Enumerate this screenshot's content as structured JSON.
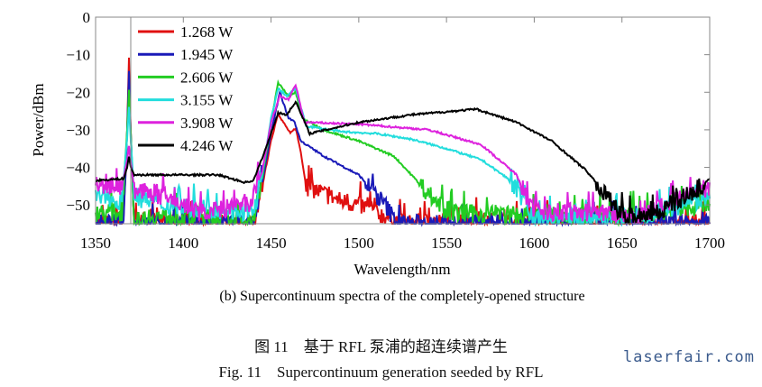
{
  "chart_data": {
    "type": "line",
    "title": "(b) Supercontinuum spectra of the completely-opened structure",
    "xlabel": "Wavelength/nm",
    "ylabel": "Power/dBm",
    "xlim": [
      1350,
      1700
    ],
    "ylim": [
      -55,
      0
    ],
    "xticks": [
      1350,
      1400,
      1450,
      1500,
      1550,
      1600,
      1650,
      1700
    ],
    "yticks": [
      0,
      -10,
      -20,
      -30,
      -40,
      -50
    ],
    "grid": false,
    "legend_position": "top-left",
    "series": [
      {
        "name": "1.268 W",
        "color": "#e01010",
        "points": [
          [
            1350,
            -55
          ],
          [
            1366,
            -55
          ],
          [
            1368,
            -30
          ],
          [
            1369,
            -11
          ],
          [
            1370,
            -30
          ],
          [
            1372,
            -55
          ],
          [
            1440,
            -55
          ],
          [
            1445,
            -45
          ],
          [
            1450,
            -33
          ],
          [
            1454,
            -25.5
          ],
          [
            1457,
            -28
          ],
          [
            1461,
            -31
          ],
          [
            1464,
            -29.5
          ],
          [
            1467,
            -36
          ],
          [
            1470,
            -45
          ],
          [
            1480,
            -47
          ],
          [
            1490,
            -49
          ],
          [
            1500,
            -50
          ],
          [
            1510,
            -52
          ],
          [
            1520,
            -54
          ],
          [
            1525,
            -55
          ],
          [
            1560,
            -54
          ],
          [
            1600,
            -55
          ],
          [
            1700,
            -55
          ]
        ]
      },
      {
        "name": "1.945 W",
        "color": "#1a1ab8",
        "points": [
          [
            1350,
            -55
          ],
          [
            1366,
            -55
          ],
          [
            1368,
            -30
          ],
          [
            1369,
            -14.5
          ],
          [
            1370,
            -30
          ],
          [
            1372,
            -55
          ],
          [
            1440,
            -55
          ],
          [
            1445,
            -44
          ],
          [
            1450,
            -31
          ],
          [
            1455,
            -20
          ],
          [
            1460,
            -27
          ],
          [
            1463,
            -27.5
          ],
          [
            1467,
            -33
          ],
          [
            1480,
            -37
          ],
          [
            1500,
            -42
          ],
          [
            1515,
            -50
          ],
          [
            1522,
            -55
          ],
          [
            1700,
            -55
          ]
        ]
      },
      {
        "name": "2.606 W",
        "color": "#22cc22",
        "points": [
          [
            1350,
            -52
          ],
          [
            1365,
            -52
          ],
          [
            1368,
            -30
          ],
          [
            1369,
            -19.5
          ],
          [
            1370,
            -30
          ],
          [
            1372,
            -55
          ],
          [
            1380,
            -53
          ],
          [
            1440,
            -54
          ],
          [
            1445,
            -43
          ],
          [
            1450,
            -28
          ],
          [
            1454,
            -17.5
          ],
          [
            1460,
            -21
          ],
          [
            1464,
            -20
          ],
          [
            1468,
            -27
          ],
          [
            1480,
            -30
          ],
          [
            1500,
            -33
          ],
          [
            1520,
            -37
          ],
          [
            1530,
            -42
          ],
          [
            1540,
            -47
          ],
          [
            1550,
            -52
          ],
          [
            1600,
            -53
          ],
          [
            1650,
            -53
          ],
          [
            1700,
            -50
          ]
        ]
      },
      {
        "name": "3.155 W",
        "color": "#22dddd",
        "points": [
          [
            1350,
            -48
          ],
          [
            1365,
            -49
          ],
          [
            1368,
            -32
          ],
          [
            1369,
            -24
          ],
          [
            1370,
            -32
          ],
          [
            1372,
            -48
          ],
          [
            1390,
            -50
          ],
          [
            1440,
            -52
          ],
          [
            1445,
            -42
          ],
          [
            1450,
            -27
          ],
          [
            1454,
            -19
          ],
          [
            1459,
            -21
          ],
          [
            1464,
            -19
          ],
          [
            1470,
            -29
          ],
          [
            1490,
            -30.5
          ],
          [
            1510,
            -31
          ],
          [
            1530,
            -32.5
          ],
          [
            1550,
            -35
          ],
          [
            1570,
            -38
          ],
          [
            1585,
            -43
          ],
          [
            1595,
            -50
          ],
          [
            1600,
            -54
          ],
          [
            1660,
            -53
          ],
          [
            1700,
            -48
          ]
        ]
      },
      {
        "name": "3.908 W",
        "color": "#dd22dd",
        "points": [
          [
            1350,
            -45
          ],
          [
            1365,
            -45
          ],
          [
            1368,
            -38
          ],
          [
            1369,
            -34.5
          ],
          [
            1370,
            -38
          ],
          [
            1372,
            -46
          ],
          [
            1390,
            -48
          ],
          [
            1410,
            -52
          ],
          [
            1438,
            -50
          ],
          [
            1445,
            -41
          ],
          [
            1450,
            -28
          ],
          [
            1455,
            -21
          ],
          [
            1460,
            -22
          ],
          [
            1464,
            -18
          ],
          [
            1469,
            -28
          ],
          [
            1500,
            -28.5
          ],
          [
            1540,
            -30
          ],
          [
            1570,
            -34
          ],
          [
            1590,
            -42
          ],
          [
            1600,
            -52
          ],
          [
            1640,
            -52
          ],
          [
            1660,
            -53
          ],
          [
            1700,
            -45
          ]
        ]
      },
      {
        "name": "4.246 W",
        "color": "#000000",
        "points": [
          [
            1350,
            -43.5
          ],
          [
            1366,
            -43
          ],
          [
            1368,
            -40
          ],
          [
            1369,
            -37
          ],
          [
            1370,
            -40
          ],
          [
            1372,
            -42
          ],
          [
            1420,
            -42
          ],
          [
            1435,
            -44
          ],
          [
            1440,
            -43.5
          ],
          [
            1447,
            -35
          ],
          [
            1454,
            -25.5
          ],
          [
            1459,
            -26
          ],
          [
            1464,
            -22.5
          ],
          [
            1472,
            -31
          ],
          [
            1500,
            -28
          ],
          [
            1530,
            -26
          ],
          [
            1567,
            -24.5
          ],
          [
            1590,
            -28
          ],
          [
            1610,
            -33
          ],
          [
            1630,
            -41
          ],
          [
            1645,
            -50
          ],
          [
            1652,
            -53
          ],
          [
            1670,
            -52
          ],
          [
            1690,
            -47
          ],
          [
            1700,
            -43
          ]
        ]
      }
    ]
  },
  "captions": {
    "cn": "图 11　基于 RFL 泵浦的超连续谱产生",
    "en": "Fig. 11　Supercontinuum generation seeded by RFL"
  },
  "watermark": "laserfair.com"
}
